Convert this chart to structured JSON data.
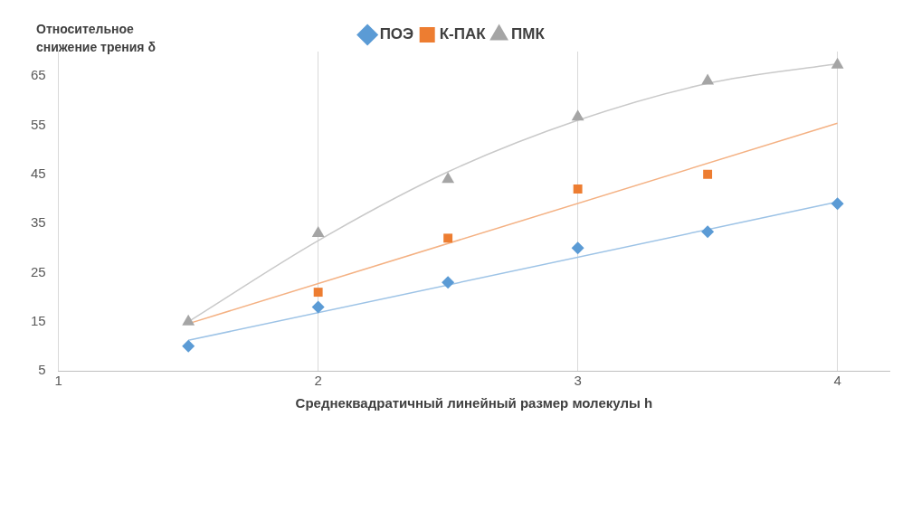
{
  "chart_data": {
    "type": "scatter",
    "ylabel": "Относительное снижение трения δ",
    "xlabel": "Среднеквадратичный линейный размер молекулы h",
    "x": [
      1.5,
      2,
      2.5,
      3,
      3.5,
      4
    ],
    "series": [
      {
        "name": "ПОЭ",
        "marker": "diamond",
        "color": "#5b9bd5",
        "values": [
          10,
          18,
          23,
          30,
          33.3,
          39
        ]
      },
      {
        "name": "К-ПАК",
        "marker": "square",
        "color": "#ed7d31",
        "x": [
          2,
          2.5,
          3,
          3.5
        ],
        "values": [
          21,
          32,
          42,
          45
        ]
      },
      {
        "name": "ПМК",
        "marker": "triangle",
        "color": "#a5a5a5",
        "values": [
          15,
          33,
          44,
          56.7,
          64,
          67.3
        ]
      },
      {
        "type": "line",
        "color": "#9dc3e6",
        "x": [
          1.5,
          4
        ],
        "values": [
          11.2,
          39.4
        ]
      },
      {
        "type": "line",
        "color": "#f4b183",
        "x": [
          1.5,
          4
        ],
        "values": [
          14.6,
          55.4
        ]
      },
      {
        "type": "line",
        "color": "#c9c9c9",
        "values": [
          15,
          31.5,
          45.5,
          56,
          63.5,
          67.5
        ]
      }
    ],
    "xlim": [
      1,
      4.2
    ],
    "xticks": [
      1,
      2,
      3,
      4
    ],
    "ylim": [
      5,
      70
    ],
    "yticks": [
      5,
      15,
      25,
      35,
      45,
      55,
      65
    ],
    "grid": "x",
    "legend": "top"
  }
}
